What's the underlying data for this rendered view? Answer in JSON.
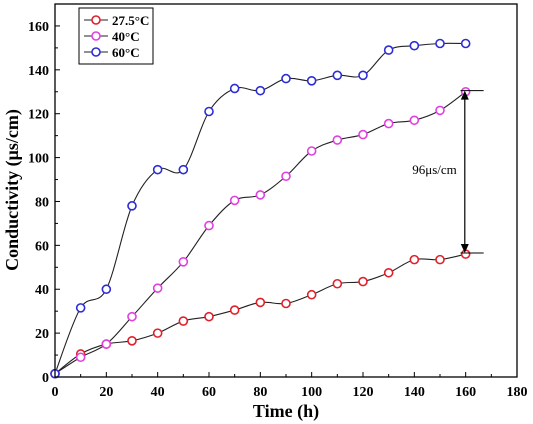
{
  "chart_data": {
    "type": "line",
    "xlabel": "Time (h)",
    "ylabel": "Conductivity (μs/cm)",
    "xlim": [
      0,
      180
    ],
    "ylim": [
      0,
      170
    ],
    "xticks": [
      "0",
      "20",
      "40",
      "60",
      "80",
      "100",
      "120",
      "140",
      "160",
      "180"
    ],
    "yticks": [
      "0",
      "20",
      "40",
      "60",
      "80",
      "100",
      "120",
      "140",
      "160"
    ],
    "grid": false,
    "legend_position": "top-left",
    "x": [
      0,
      10,
      20,
      30,
      40,
      50,
      60,
      70,
      80,
      90,
      100,
      110,
      120,
      130,
      140,
      150,
      160
    ],
    "series": [
      {
        "name": "27.5°C",
        "color": "#e0202a",
        "values": [
          1.5,
          10.5,
          15,
          16.5,
          20,
          25.5,
          27.5,
          30.5,
          34,
          33.5,
          37.5,
          42.5,
          43.5,
          47.5,
          53.5,
          53.5,
          56
        ]
      },
      {
        "name": "40°C",
        "color": "#e040e0",
        "values": [
          1.5,
          9,
          15,
          27.5,
          40.5,
          52.5,
          69,
          80.5,
          83,
          91.5,
          103,
          108,
          110.5,
          115.5,
          117,
          121.5,
          130
        ]
      },
      {
        "name": "60°C",
        "color": "#2c2cd8",
        "values": [
          1.5,
          31.5,
          40,
          78,
          94.5,
          94.5,
          121,
          131.5,
          130.5,
          136,
          135,
          137.5,
          137.5,
          149,
          151,
          152,
          152
        ]
      }
    ],
    "annotation": {
      "label": "96μs/cm",
      "x": 162,
      "from": 56.5,
      "to": 130.5
    }
  }
}
